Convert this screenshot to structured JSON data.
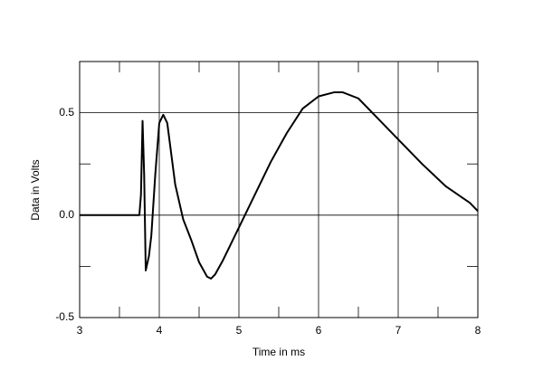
{
  "chart_data": {
    "type": "line",
    "x_label": "Time in ms",
    "y_label": "Data in Volts",
    "xlim": [
      3,
      8
    ],
    "ylim": [
      -0.5,
      0.75
    ],
    "xticks": [
      3,
      4,
      5,
      6,
      7,
      8
    ],
    "yticks": [
      -0.5,
      {
        "value": 0,
        "label": "0.0"
      },
      0.5
    ],
    "minor_xticks": [
      3.5,
      4.5,
      5.5,
      6.5,
      7.5
    ],
    "minor_yticks": [
      -0.25,
      0.25
    ],
    "grid": true,
    "series": [
      {
        "color": "#000000",
        "x": [
          3.0,
          3.75,
          3.77,
          3.79,
          3.81,
          3.83,
          3.87,
          3.9,
          3.95,
          4.0,
          4.05,
          4.1,
          4.2,
          4.3,
          4.4,
          4.5,
          4.6,
          4.65,
          4.7,
          4.8,
          5.0,
          5.2,
          5.4,
          5.6,
          5.8,
          6.0,
          6.2,
          6.3,
          6.5,
          6.8,
          7.0,
          7.3,
          7.6,
          7.9,
          8.0
        ],
        "values": [
          0,
          0,
          0.1,
          0.46,
          0.2,
          -0.27,
          -0.2,
          -0.1,
          0.2,
          0.45,
          0.49,
          0.45,
          0.15,
          -0.02,
          -0.12,
          -0.23,
          -0.3,
          -0.31,
          -0.29,
          -0.22,
          -0.06,
          0.1,
          0.26,
          0.4,
          0.52,
          0.58,
          0.6,
          0.6,
          0.57,
          0.45,
          0.37,
          0.25,
          0.14,
          0.06,
          0.02
        ]
      }
    ]
  }
}
